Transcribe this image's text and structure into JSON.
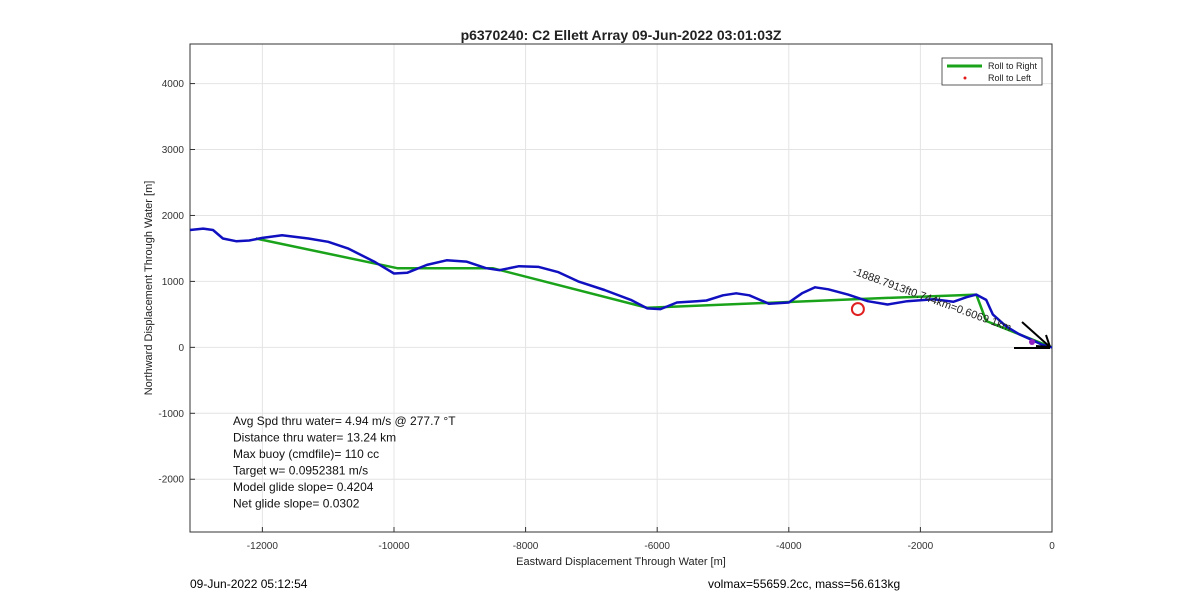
{
  "footer": {
    "left": "09-Jun-2022 05:12:54",
    "right": "volmax=55659.2cc, mass=56.613kg"
  },
  "chart_data": {
    "type": "line",
    "title": "p6370240: C2 Ellett Array 09-Jun-2022 03:01:03Z",
    "xlabel": "Eastward Displacement Through Water [m]",
    "ylabel": "Northward Displacement Through Water [m]",
    "xlim": [
      -13100,
      0
    ],
    "ylim": [
      -2800,
      4600
    ],
    "xticks": [
      -12000,
      -10000,
      -8000,
      -6000,
      -4000,
      -2000,
      0
    ],
    "yticks": [
      -2000,
      -1000,
      0,
      1000,
      2000,
      3000,
      4000
    ],
    "grid": true,
    "legend_position": "top-right",
    "legend": [
      {
        "label": "Roll to Right",
        "color": "#1aa31a",
        "marker": "line"
      },
      {
        "label": "Roll to Left",
        "color": "#e31a1a",
        "marker": "dot"
      }
    ],
    "series": [
      {
        "name": "Roll to Right",
        "color": "#1aa31a",
        "x": [
          -12100,
          -9950,
          -8500,
          -6150,
          -2500,
          -1150,
          -1000,
          0
        ],
        "y": [
          1650,
          1200,
          1200,
          600,
          750,
          800,
          400,
          0
        ]
      },
      {
        "color": "#1010c0",
        "x": [
          -13100,
          -12900,
          -12750,
          -12600,
          -12400,
          -12200,
          -12000,
          -11700,
          -11300,
          -11000,
          -10700,
          -10300,
          -10000,
          -9800,
          -9500,
          -9200,
          -8900,
          -8600,
          -8400,
          -8100,
          -7800,
          -7500,
          -7200,
          -6800,
          -6400,
          -6150,
          -5950,
          -5700,
          -5400,
          -5250,
          -5000,
          -4800,
          -4600,
          -4300,
          -4000,
          -3800,
          -3600,
          -3400,
          -3100,
          -2800,
          -2500,
          -2200,
          -1800,
          -1500,
          -1300,
          -1150,
          -1000,
          -900,
          -700,
          -500,
          -300,
          -150,
          0
        ],
        "y": [
          1780,
          1800,
          1780,
          1650,
          1610,
          1620,
          1660,
          1700,
          1650,
          1600,
          1500,
          1300,
          1120,
          1130,
          1250,
          1320,
          1300,
          1200,
          1170,
          1230,
          1220,
          1140,
          1000,
          870,
          720,
          590,
          580,
          680,
          700,
          710,
          790,
          820,
          790,
          660,
          680,
          820,
          910,
          880,
          800,
          700,
          650,
          700,
          730,
          690,
          760,
          800,
          720,
          500,
          320,
          200,
          110,
          40,
          0
        ]
      }
    ],
    "marker_red_circle": {
      "x": -2950,
      "y": 580
    },
    "arrow_annotation": {
      "text": "-1888.7913ft0.744km=0.6069 1km"
    },
    "stats_text": [
      "Avg Spd thru water=  4.94 m/s @ 277.7 °T",
      "Distance thru water= 13.24 km",
      "Max buoy (cmdfile)= 110 cc",
      "Target w= 0.0952381 m/s",
      "Model glide slope= 0.4204",
      "Net glide slope= 0.0302"
    ]
  }
}
